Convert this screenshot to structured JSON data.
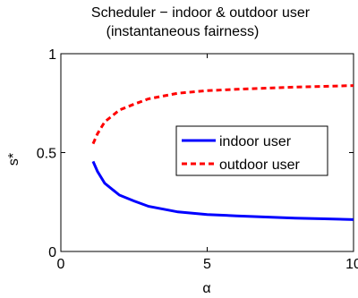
{
  "chart_data": {
    "type": "line",
    "title": "Scheduler − indoor & outdoor user",
    "subtitle": "(instantaneous fairness)",
    "xlabel": "α",
    "ylabel": "s*",
    "xlim": [
      0,
      10
    ],
    "ylim": [
      0,
      1
    ],
    "x_ticks": [
      0,
      5,
      10
    ],
    "x_tick_labels": [
      "0",
      "5",
      "10"
    ],
    "y_ticks": [
      0,
      0.5,
      1
    ],
    "y_tick_labels": [
      "0",
      "0.5",
      "1"
    ],
    "grid": false,
    "legend_position": "center-right",
    "series": [
      {
        "name": "indoor user",
        "color": "#0000ff",
        "style": "solid",
        "x": [
          1.1,
          1.25,
          1.5,
          2,
          2.5,
          3,
          4,
          5,
          6,
          7,
          8,
          9,
          10
        ],
        "y": [
          0.455,
          0.405,
          0.345,
          0.285,
          0.255,
          0.228,
          0.2,
          0.187,
          0.18,
          0.174,
          0.169,
          0.165,
          0.161
        ]
      },
      {
        "name": "outdoor user",
        "color": "#ff0000",
        "style": "dashed",
        "x": [
          1.1,
          1.25,
          1.5,
          2,
          2.5,
          3,
          4,
          5,
          6,
          7,
          8,
          9,
          10
        ],
        "y": [
          0.545,
          0.595,
          0.655,
          0.715,
          0.745,
          0.772,
          0.8,
          0.813,
          0.82,
          0.826,
          0.831,
          0.835,
          0.839
        ]
      }
    ]
  }
}
